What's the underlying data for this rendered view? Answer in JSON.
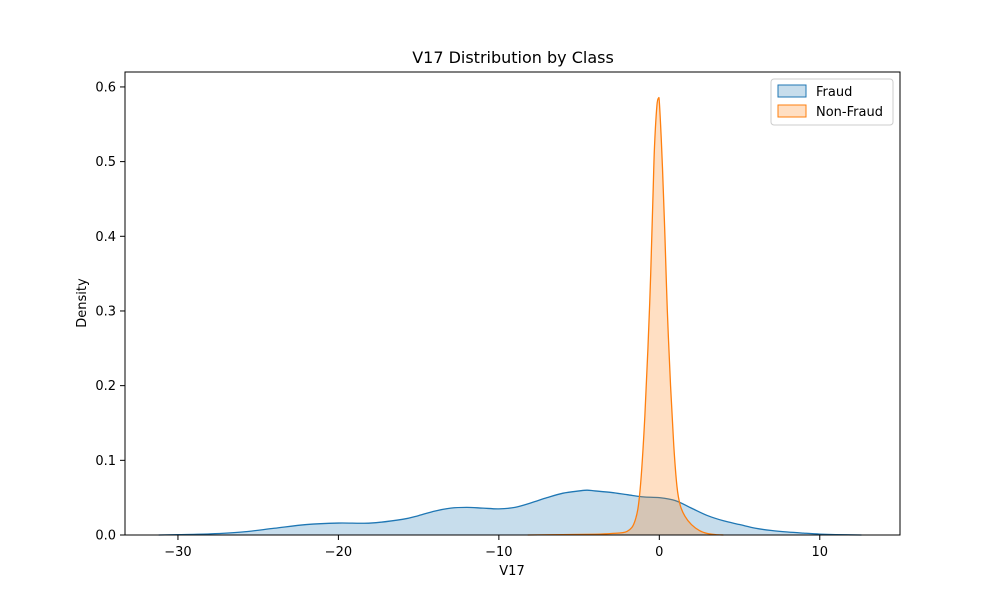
{
  "chart_data": {
    "type": "area",
    "title": "V17 Distribution by Class",
    "xlabel": "V17",
    "ylabel": "Density",
    "xlim": [
      -33.3,
      15.0
    ],
    "ylim": [
      0,
      0.62
    ],
    "x_ticks": [
      -30,
      -20,
      -10,
      0,
      10
    ],
    "x_tick_labels": [
      "−30",
      "−20",
      "−10",
      "0",
      "10"
    ],
    "y_ticks": [
      0.0,
      0.1,
      0.2,
      0.3,
      0.4,
      0.5,
      0.6
    ],
    "y_tick_labels": [
      "0.0",
      "0.1",
      "0.2",
      "0.3",
      "0.4",
      "0.5",
      "0.6"
    ],
    "grid": false,
    "legend_position": "top-right",
    "series": [
      {
        "name": "Fraud",
        "color": "#1f77b4",
        "fill_color": "#1f77b4",
        "fill_opacity": 0.25,
        "x": [
          -31.2,
          -30,
          -28,
          -26,
          -24,
          -22,
          -20,
          -18,
          -16,
          -15,
          -14,
          -13,
          -12,
          -11,
          -10,
          -9,
          -8,
          -7,
          -6,
          -5,
          -4.5,
          -4,
          -3,
          -2,
          -1,
          0,
          1,
          2,
          3,
          4,
          5,
          6,
          7,
          8,
          9,
          10,
          11,
          12.6
        ],
        "y": [
          0.0,
          0.0005,
          0.0015,
          0.004,
          0.009,
          0.014,
          0.016,
          0.016,
          0.021,
          0.026,
          0.032,
          0.036,
          0.037,
          0.036,
          0.035,
          0.037,
          0.043,
          0.05,
          0.056,
          0.059,
          0.06,
          0.059,
          0.057,
          0.054,
          0.051,
          0.05,
          0.046,
          0.036,
          0.026,
          0.019,
          0.014,
          0.009,
          0.006,
          0.004,
          0.0025,
          0.0012,
          0.0005,
          0.0
        ]
      },
      {
        "name": "Non-Fraud",
        "color": "#ff7f0e",
        "fill_color": "#ff7f0e",
        "fill_opacity": 0.25,
        "x": [
          -8.2,
          -6,
          -4,
          -3,
          -2,
          -1.5,
          -1.2,
          -0.9,
          -0.6,
          -0.4,
          -0.3,
          -0.15,
          -0.05,
          0.0,
          0.1,
          0.2,
          0.35,
          0.5,
          0.7,
          0.9,
          1.1,
          1.3,
          1.6,
          2.0,
          2.5,
          3.0,
          3.5,
          4.0
        ],
        "y": [
          0.0,
          0.0005,
          0.001,
          0.002,
          0.005,
          0.02,
          0.06,
          0.16,
          0.31,
          0.45,
          0.52,
          0.575,
          0.585,
          0.58,
          0.54,
          0.49,
          0.4,
          0.3,
          0.2,
          0.12,
          0.065,
          0.04,
          0.025,
          0.014,
          0.006,
          0.002,
          0.0005,
          0.0
        ]
      }
    ]
  }
}
